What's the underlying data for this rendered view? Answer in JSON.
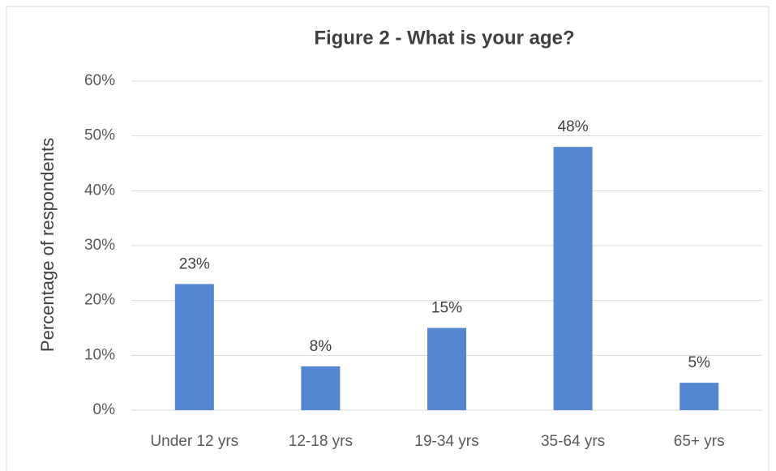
{
  "chart_data": {
    "type": "bar",
    "title": "Figure 2 - What is your age?",
    "y_label": "Percentage of respondents",
    "categories": [
      "Under 12 yrs",
      "12-18 yrs",
      "19-34 yrs",
      "35-64 yrs",
      "65+ yrs"
    ],
    "values": [
      23,
      8,
      15,
      48,
      5
    ],
    "value_labels": [
      "23%",
      "8%",
      "15%",
      "48%",
      "5%"
    ],
    "color": "#5586d2",
    "ylim": [
      0,
      60
    ],
    "yticks": [
      {
        "value": 0,
        "label": "0%"
      },
      {
        "value": 10,
        "label": "10%"
      },
      {
        "value": 20,
        "label": "20%"
      },
      {
        "value": 30,
        "label": "30%"
      },
      {
        "value": 40,
        "label": "40%"
      },
      {
        "value": 50,
        "label": "50%"
      },
      {
        "value": 60,
        "label": "60%"
      }
    ],
    "grid": true
  }
}
